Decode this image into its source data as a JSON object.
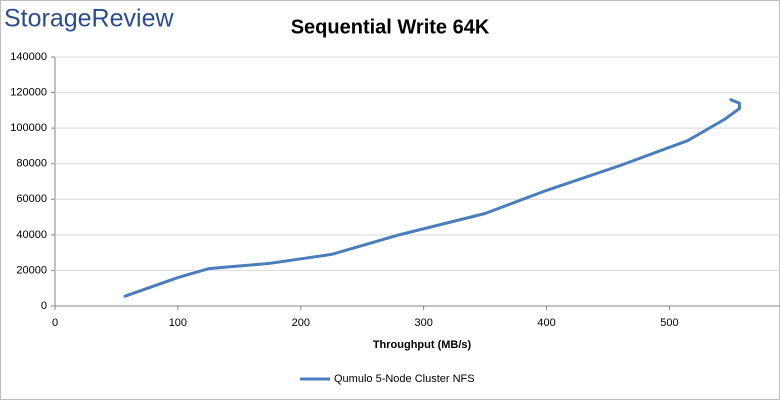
{
  "logo": "StorageReview",
  "chart_data": {
    "type": "line",
    "title": "Sequential Write 64K",
    "x_label": "Throughput (MB/s)",
    "x": [
      57,
      100,
      125,
      175,
      225,
      280,
      350,
      400,
      460,
      515,
      545,
      557,
      557,
      550
    ],
    "series": [
      {
        "name": "Qumulo 5-Node Cluster NFS",
        "color": "#4a7ebb",
        "values": [
          5500,
          16000,
          21000,
          24000,
          29000,
          40000,
          52000,
          65000,
          79000,
          93000,
          105000,
          111000,
          114000,
          116000
        ]
      }
    ],
    "xlim": [
      0,
      590
    ],
    "xticks": [
      0,
      100,
      200,
      300,
      400,
      500
    ],
    "ylim": [
      0,
      140000
    ],
    "yticks": [
      0,
      20000,
      40000,
      60000,
      80000,
      100000,
      120000,
      140000
    ],
    "grid": true,
    "legend": "bottom"
  }
}
